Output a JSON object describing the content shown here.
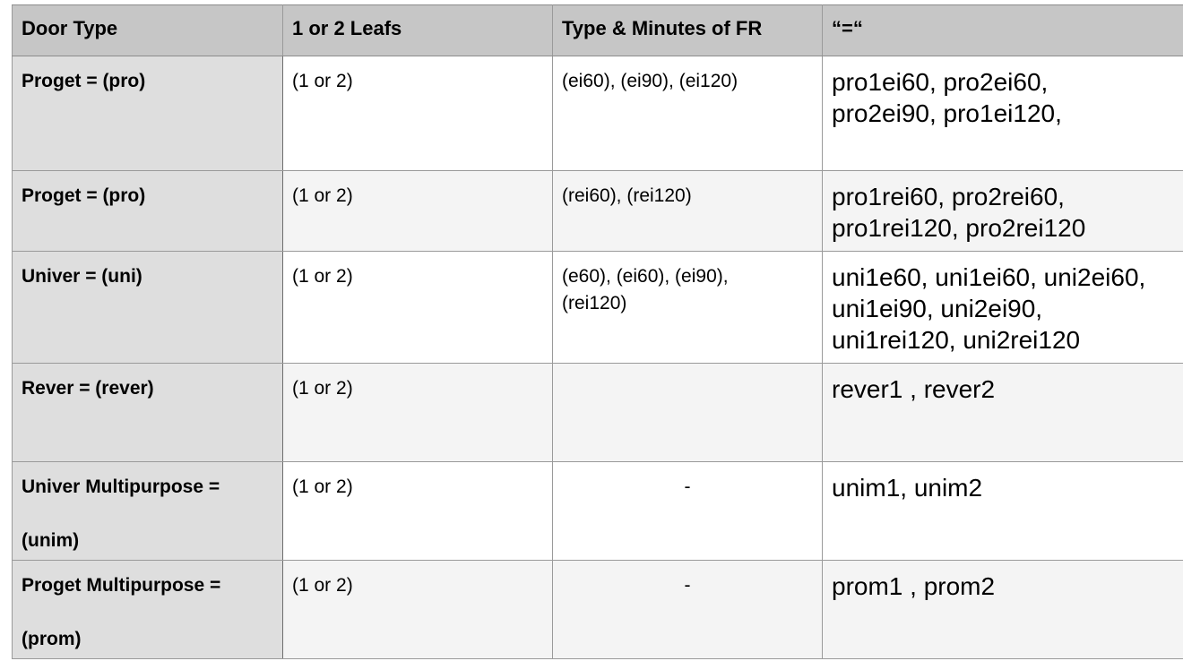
{
  "table": {
    "headers": [
      "Door Type",
      "1 or 2 Leafs",
      "Type & Minutes of FR",
      "“=“"
    ],
    "rows": [
      {
        "type_lines": [
          "Proget = (pro)"
        ],
        "leafs": "(1 or 2)",
        "fr_lines": [
          "(ei60), (ei90), (ei120)"
        ],
        "fr_align": "left",
        "code_lines": [
          "pro1ei60, pro2ei60,",
          "pro2ei90, pro1ei120,"
        ]
      },
      {
        "type_lines": [
          "Proget = (pro)"
        ],
        "leafs": "(1 or 2)",
        "fr_lines": [
          "(rei60), (rei120)"
        ],
        "fr_align": "left",
        "code_lines": [
          "pro1rei60, pro2rei60,",
          "pro1rei120, pro2rei120"
        ]
      },
      {
        "type_lines": [
          "Univer = (uni)"
        ],
        "leafs": "(1 or 2)",
        "fr_lines": [
          "(e60), (ei60), (ei90),",
          "(rei120)"
        ],
        "fr_align": "left",
        "code_lines": [
          "uni1e60, uni1ei60, uni2ei60,",
          "uni1ei90, uni2ei90,",
          "uni1rei120, uni2rei120"
        ]
      },
      {
        "type_lines": [
          "Rever = (rever)"
        ],
        "leafs": "(1 or 2)",
        "fr_lines": [
          ""
        ],
        "fr_align": "left",
        "code_lines": [
          "rever1 , rever2"
        ]
      },
      {
        "type_lines": [
          "Univer Multipurpose =",
          "(unim)"
        ],
        "leafs": "(1 or 2)",
        "fr_lines": [
          "-"
        ],
        "fr_align": "center",
        "code_lines": [
          "unim1, unim2"
        ]
      },
      {
        "type_lines": [
          "Proget Multipurpose =",
          "(prom)"
        ],
        "leafs": "(1 or 2)",
        "fr_lines": [
          "-"
        ],
        "fr_align": "center",
        "code_lines": [
          "prom1 , prom2"
        ]
      }
    ]
  }
}
